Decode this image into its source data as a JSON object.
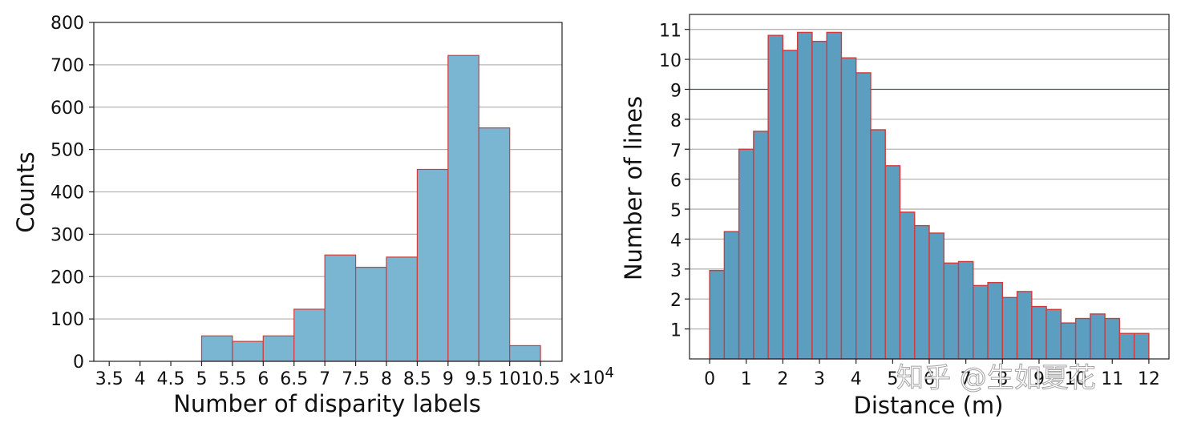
{
  "chart_data": [
    {
      "type": "bar",
      "title": "",
      "xlabel": "Number of disparity labels",
      "ylabel": "Counts",
      "x_multiplier_label": "×10",
      "x_multiplier_exponent": "4",
      "xlim": [
        3.25,
        10.85
      ],
      "ylim": [
        0,
        800
      ],
      "xticks": [
        3.5,
        4,
        4.5,
        5,
        5.5,
        6,
        6.5,
        7,
        7.5,
        8,
        8.5,
        9,
        9.5,
        10,
        10.5
      ],
      "xtick_labels": [
        "3.5",
        "4",
        "4.5",
        "5",
        "5.5",
        "6",
        "6.5",
        "7",
        "7.5",
        "8",
        "8.5",
        "9",
        "9.5",
        "10",
        "10.5"
      ],
      "yticks": [
        0,
        100,
        200,
        300,
        400,
        500,
        600,
        700,
        800
      ],
      "ytick_labels": [
        "0",
        "100",
        "200",
        "300",
        "400",
        "500",
        "600",
        "700",
        "800"
      ],
      "grid": "horizontal",
      "bin_edges": [
        3.5,
        4.0,
        4.5,
        5.0,
        5.5,
        6.0,
        6.5,
        7.0,
        7.5,
        8.0,
        8.5,
        9.0,
        9.5,
        10.0,
        10.5
      ],
      "values": [
        0,
        0,
        0,
        60,
        47,
        60,
        123,
        251,
        222,
        246,
        453,
        722,
        551,
        37
      ],
      "colors": {
        "fill": "#7ab5d1",
        "edge": "#d23b3b",
        "grid": "#b5b5b5"
      }
    },
    {
      "type": "bar",
      "title": "",
      "xlabel": "Distance (m)",
      "ylabel": "Number of lines",
      "xlim": [
        -0.55,
        12.55
      ],
      "ylim": [
        0,
        11.5
      ],
      "xticks": [
        0,
        1,
        2,
        3,
        4,
        5,
        6,
        7,
        8,
        9,
        10,
        11,
        12
      ],
      "xtick_labels": [
        "0",
        "1",
        "2",
        "3",
        "4",
        "5",
        "6",
        "7",
        "8",
        "9",
        "10",
        "11",
        "12"
      ],
      "yticks": [
        1,
        2,
        3,
        4,
        5,
        6,
        7,
        8,
        9,
        10,
        11
      ],
      "ytick_labels": [
        "1",
        "2",
        "3",
        "4",
        "5",
        "6",
        "7",
        "8",
        "9",
        "10",
        "11"
      ],
      "grid": "horizontal",
      "bin_width": 0.4,
      "bin_start": 0,
      "values": [
        2.95,
        4.25,
        7.0,
        7.6,
        10.8,
        10.3,
        10.9,
        10.6,
        10.9,
        10.05,
        9.55,
        7.65,
        6.45,
        4.9,
        4.45,
        4.2,
        3.2,
        3.25,
        2.45,
        2.55,
        2.05,
        2.25,
        1.75,
        1.65,
        1.2,
        1.35,
        1.5,
        1.35,
        0.85,
        0.85
      ],
      "colors": {
        "fill": "#5b9ec0",
        "edge": "#d23b3b",
        "grid": "#b5b5b5",
        "highlight_grid": "#3d5a7a"
      }
    }
  ],
  "watermark": "知乎 @生如夏花"
}
